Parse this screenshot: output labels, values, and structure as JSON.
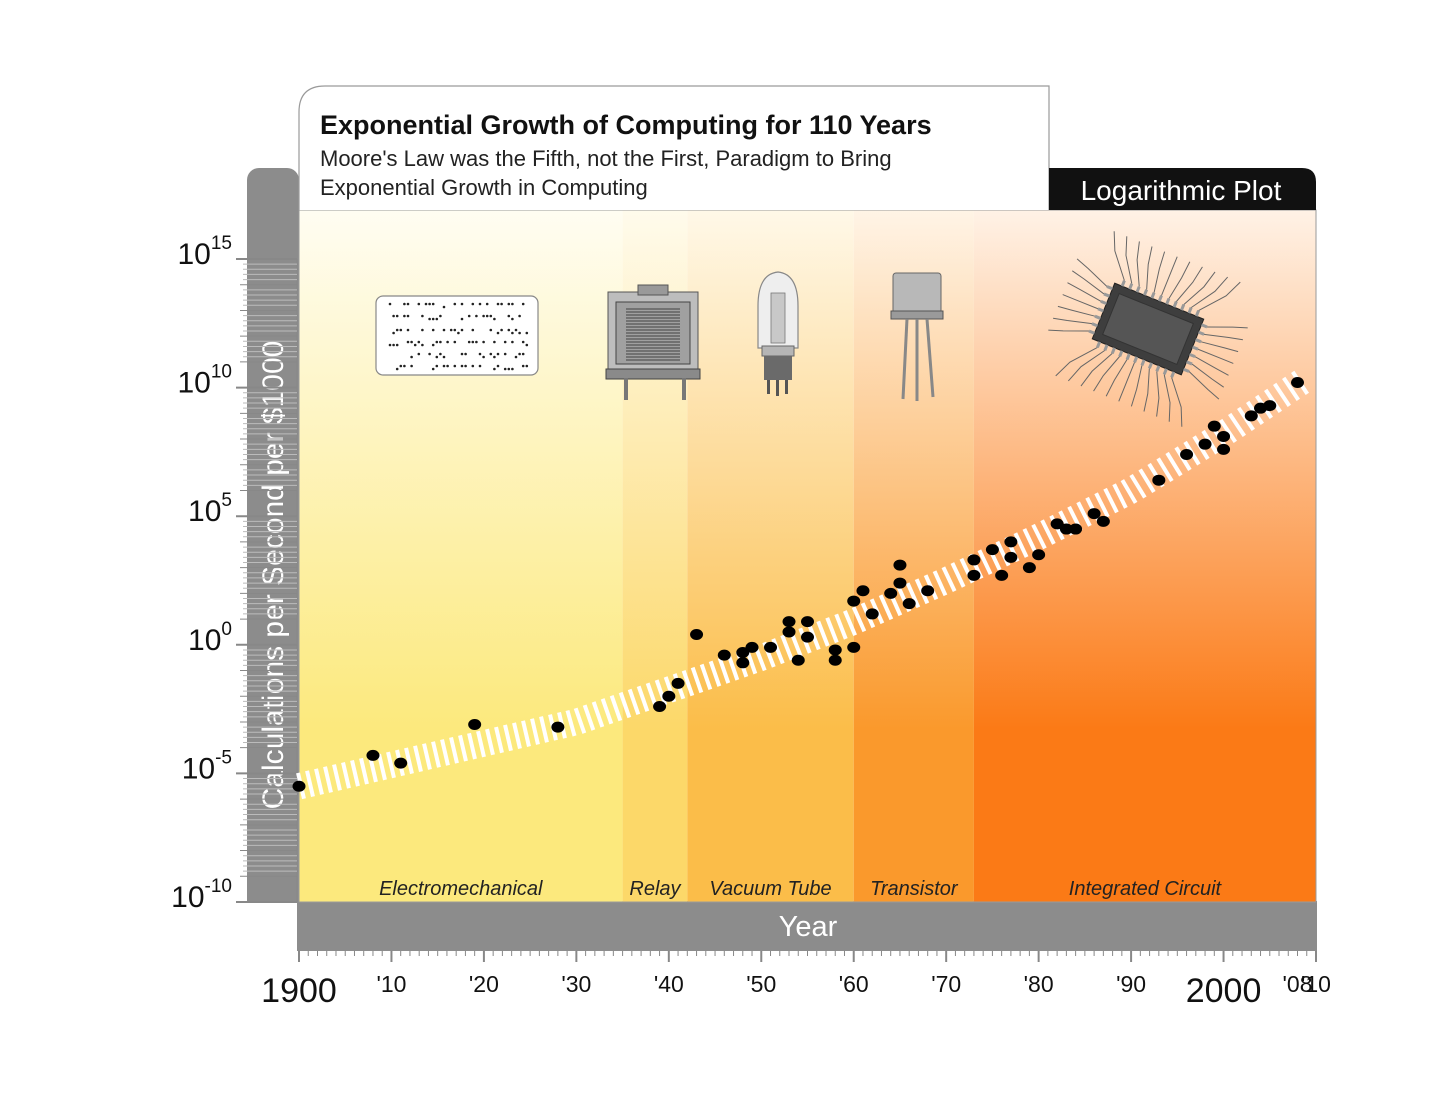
{
  "chart_data": {
    "type": "scatter",
    "title": "Exponential Growth of Computing for 110 Years",
    "subtitle": [
      "Moore's Law was the Fifth, not the First, Paradigm to Bring",
      "Exponential Growth in Computing"
    ],
    "badge": "Logarithmic Plot",
    "xlabel": "Year",
    "ylabel": "Calculations per Second per $1000",
    "y_scale": "log",
    "xlim": [
      1900,
      2010
    ],
    "ylim_exponent": [
      -10,
      15
    ],
    "y_ticks": [
      {
        "base": "10",
        "exp": "15",
        "value": 15
      },
      {
        "base": "10",
        "exp": "10",
        "value": 10
      },
      {
        "base": "10",
        "exp": "5",
        "value": 5
      },
      {
        "base": "10",
        "exp": "0",
        "value": 0
      },
      {
        "base": "10",
        "exp": "-5",
        "value": -5
      },
      {
        "base": "10",
        "exp": "-10",
        "value": -10
      }
    ],
    "x_ticks": [
      {
        "label": "1900",
        "year": 1900,
        "big": true
      },
      {
        "label": "'10",
        "year": 1910
      },
      {
        "label": "'20",
        "year": 1920
      },
      {
        "label": "'30",
        "year": 1930
      },
      {
        "label": "'40",
        "year": 1940
      },
      {
        "label": "'50",
        "year": 1950
      },
      {
        "label": "'60",
        "year": 1960
      },
      {
        "label": "'70",
        "year": 1970
      },
      {
        "label": "'80",
        "year": 1980
      },
      {
        "label": "'90",
        "year": 1990
      },
      {
        "label": "2000",
        "year": 2000,
        "big": true
      },
      {
        "label": "'08",
        "year": 2008
      },
      {
        "label": "'10",
        "year": 2010
      }
    ],
    "eras": [
      {
        "name": "Electromechanical",
        "start": 1900,
        "end": 1935,
        "color_top": "#fffdf2",
        "color_bottom": "#fce97d",
        "icon": "punch-card"
      },
      {
        "name": "Relay",
        "start": 1935,
        "end": 1942,
        "color_top": "#fffbec",
        "color_bottom": "#fcd869",
        "icon": "relay"
      },
      {
        "name": "Vacuum Tube",
        "start": 1942,
        "end": 1960,
        "color_top": "#fff8e8",
        "color_bottom": "#fbbd49",
        "icon": "vacuum-tube"
      },
      {
        "name": "Transistor",
        "start": 1960,
        "end": 1973,
        "color_top": "#fff4e6",
        "color_bottom": "#fa992c",
        "icon": "transistor"
      },
      {
        "name": "Integrated Circuit",
        "start": 1973,
        "end": 2010,
        "color_top": "#fff2e6",
        "color_bottom": "#fb7a16",
        "icon": "integrated-circuit"
      }
    ],
    "trend": [
      {
        "x": 1900,
        "y": -5.5
      },
      {
        "x": 1930,
        "y": -3.0
      },
      {
        "x": 1950,
        "y": -0.5
      },
      {
        "x": 1960,
        "y": 0.9
      },
      {
        "x": 1970,
        "y": 2.5
      },
      {
        "x": 1980,
        "y": 4.2
      },
      {
        "x": 1990,
        "y": 6.0
      },
      {
        "x": 2000,
        "y": 8.2
      },
      {
        "x": 2010,
        "y": 10.6
      }
    ],
    "points": [
      {
        "x": 1900,
        "y": -5.5
      },
      {
        "x": 1908,
        "y": -4.3
      },
      {
        "x": 1911,
        "y": -4.6
      },
      {
        "x": 1919,
        "y": -3.1
      },
      {
        "x": 1928,
        "y": -3.2
      },
      {
        "x": 1939,
        "y": -2.4
      },
      {
        "x": 1940,
        "y": -2.0
      },
      {
        "x": 1941,
        "y": -1.5
      },
      {
        "x": 1943,
        "y": 0.4
      },
      {
        "x": 1946,
        "y": -0.4
      },
      {
        "x": 1948,
        "y": -0.7
      },
      {
        "x": 1948,
        "y": -0.3
      },
      {
        "x": 1949,
        "y": -0.1
      },
      {
        "x": 1951,
        "y": -0.1
      },
      {
        "x": 1953,
        "y": 0.9
      },
      {
        "x": 1953,
        "y": 0.5
      },
      {
        "x": 1954,
        "y": -0.6
      },
      {
        "x": 1955,
        "y": 0.9
      },
      {
        "x": 1955,
        "y": 0.3
      },
      {
        "x": 1958,
        "y": -0.2
      },
      {
        "x": 1958,
        "y": -0.6
      },
      {
        "x": 1960,
        "y": 1.7
      },
      {
        "x": 1960,
        "y": -0.1
      },
      {
        "x": 1961,
        "y": 2.1
      },
      {
        "x": 1962,
        "y": 1.2
      },
      {
        "x": 1964,
        "y": 2.0
      },
      {
        "x": 1965,
        "y": 3.1
      },
      {
        "x": 1965,
        "y": 2.4
      },
      {
        "x": 1966,
        "y": 1.6
      },
      {
        "x": 1968,
        "y": 2.1
      },
      {
        "x": 1973,
        "y": 3.3
      },
      {
        "x": 1973,
        "y": 2.7
      },
      {
        "x": 1975,
        "y": 3.7
      },
      {
        "x": 1976,
        "y": 2.7
      },
      {
        "x": 1977,
        "y": 4.0
      },
      {
        "x": 1977,
        "y": 3.4
      },
      {
        "x": 1979,
        "y": 3.0
      },
      {
        "x": 1980,
        "y": 3.5
      },
      {
        "x": 1982,
        "y": 4.7
      },
      {
        "x": 1983,
        "y": 4.5
      },
      {
        "x": 1984,
        "y": 4.5
      },
      {
        "x": 1986,
        "y": 5.1
      },
      {
        "x": 1987,
        "y": 4.8
      },
      {
        "x": 1993,
        "y": 6.4
      },
      {
        "x": 1996,
        "y": 7.4
      },
      {
        "x": 1998,
        "y": 7.8
      },
      {
        "x": 1999,
        "y": 8.5
      },
      {
        "x": 2000,
        "y": 8.1
      },
      {
        "x": 2000,
        "y": 7.6
      },
      {
        "x": 2003,
        "y": 8.9
      },
      {
        "x": 2004,
        "y": 9.2
      },
      {
        "x": 2005,
        "y": 9.3
      },
      {
        "x": 2008,
        "y": 10.2
      }
    ],
    "grid": false,
    "legend": "none"
  }
}
